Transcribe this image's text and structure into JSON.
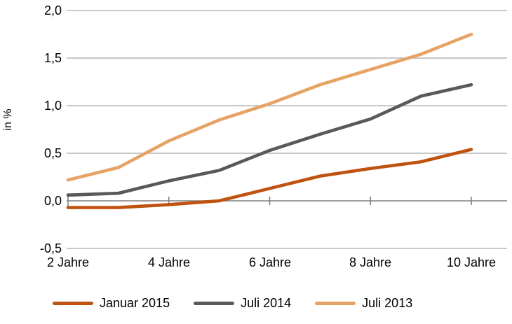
{
  "chart_data": {
    "type": "line",
    "title": "",
    "ylabel": "in %",
    "xlabel": "",
    "x_years": [
      2,
      3,
      4,
      5,
      6,
      7,
      8,
      9,
      10
    ],
    "x_tick_years": [
      2,
      4,
      6,
      8,
      10
    ],
    "x_tick_labels": [
      "2 Jahre",
      "4 Jahre",
      "6 Jahre",
      "8 Jahre",
      "10 Jahre"
    ],
    "y_ticks": [
      2.0,
      1.5,
      1.0,
      0.5,
      0.0,
      -0.5
    ],
    "y_tick_labels": [
      "2,0",
      "1,5",
      "1,0",
      "0,5",
      "0,0",
      "-0,5"
    ],
    "ylim": [
      -0.5,
      2.0
    ],
    "grid": true,
    "legend_position": "bottom",
    "series": [
      {
        "name": "Januar 2015",
        "color": "#C0520F",
        "values": [
          -0.07,
          -0.07,
          -0.04,
          0.0,
          0.13,
          0.26,
          0.34,
          0.41,
          0.54
        ]
      },
      {
        "name": "Juli 2014",
        "color": "#595959",
        "values": [
          0.06,
          0.08,
          0.21,
          0.32,
          0.53,
          0.7,
          0.86,
          1.1,
          1.22
        ]
      },
      {
        "name": "Juli 2013",
        "color": "#E6A365",
        "values": [
          0.22,
          0.35,
          0.63,
          0.85,
          1.02,
          1.22,
          1.38,
          1.54,
          1.75
        ]
      }
    ],
    "colors": {
      "gridline": "#A8A8A8",
      "axis": "#808080",
      "text": "#000000",
      "background": "#FFFFFF"
    }
  }
}
